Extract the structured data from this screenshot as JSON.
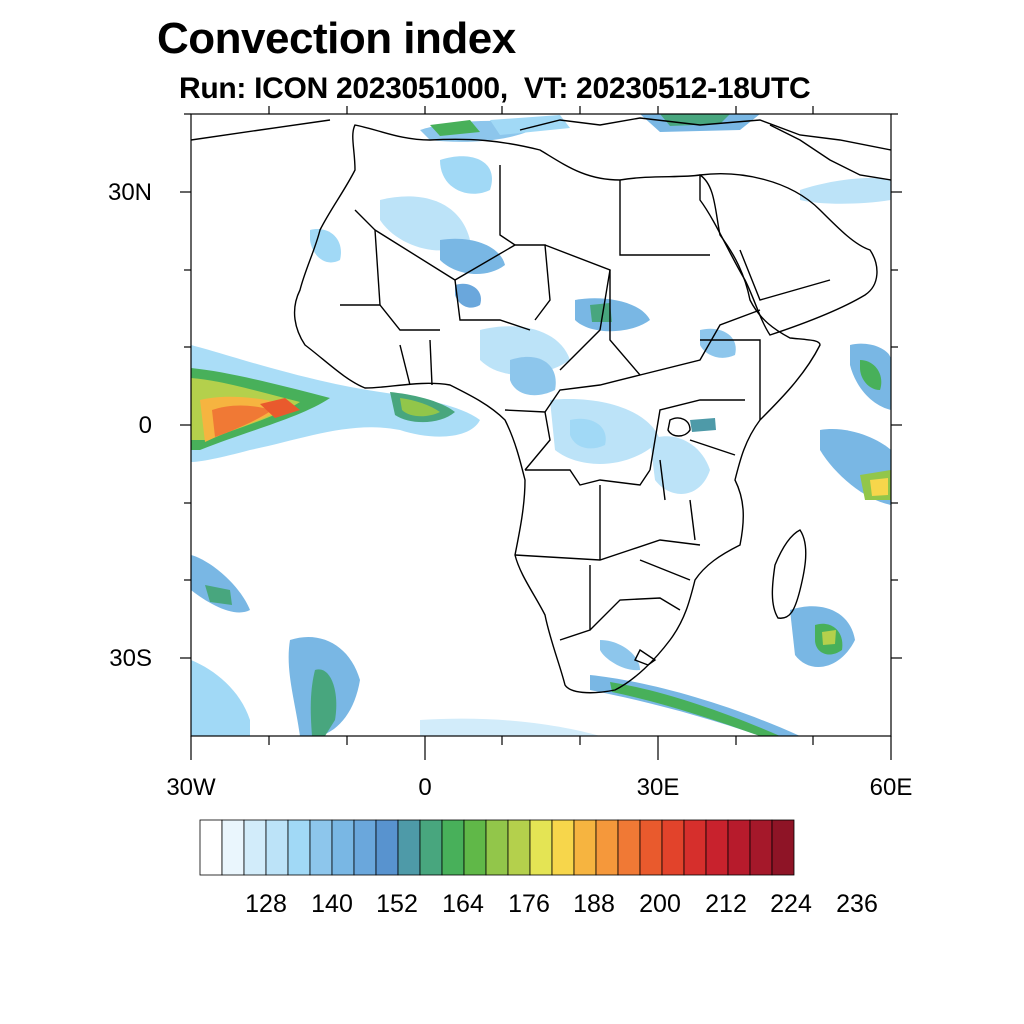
{
  "header": {
    "title": "Convection index",
    "subtitle": "Run: ICON 2023051000,  VT: 20230512-18UTC"
  },
  "map": {
    "projection": "cylindrical equidistant",
    "region": "Africa",
    "lon_range": [
      -30,
      60
    ],
    "lat_range": [
      -40,
      40
    ],
    "lat_labels": [
      "30N",
      "0",
      "30S"
    ],
    "lon_labels": [
      "30W",
      "0",
      "30E",
      "60E"
    ],
    "land_color": "#ffffff",
    "border_color": "#000000"
  },
  "colorbar": {
    "colors": [
      "#ffffff",
      "#eaf6fd",
      "#d2ecfa",
      "#bce3f8",
      "#a1d9f6",
      "#8dc6ec",
      "#79b7e4",
      "#6aa7dc",
      "#5893cf",
      "#4e9aa8",
      "#48a67e",
      "#48b05a",
      "#60b848",
      "#92c64a",
      "#b4d04c",
      "#e4e454",
      "#f7d64b",
      "#f6b440",
      "#f5983b",
      "#f07935",
      "#e95a2d",
      "#e2432b",
      "#d62f2c",
      "#c8222d",
      "#b71b2c",
      "#a5182a",
      "#8e1426"
    ],
    "tick_labels": [
      "128",
      "140",
      "152",
      "164",
      "176",
      "188",
      "200",
      "212",
      "224",
      "236"
    ]
  }
}
